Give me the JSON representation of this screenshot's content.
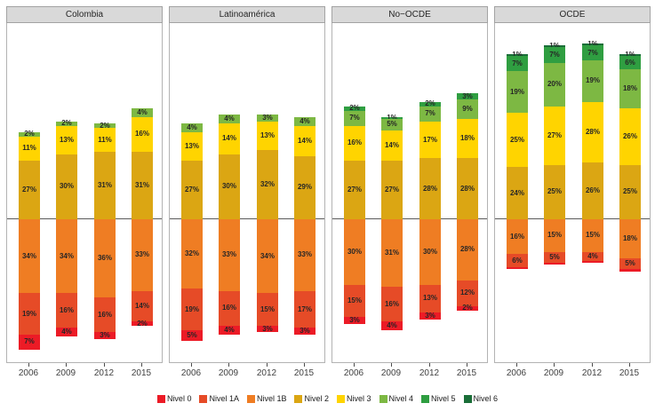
{
  "chart_data": {
    "type": "bar",
    "subtype": "diverging_stacked_percentage",
    "title": "",
    "categories": [
      "2006",
      "2009",
      "2012",
      "2015"
    ],
    "legend_position": "bottom",
    "grid": false,
    "note": "Levels Nivel 0/1A/1B stack below the zero baseline; Nivel 2-6 stack above it. Values are percentages.",
    "levels": [
      {
        "id": "nivel0",
        "label": "Nivel 0",
        "color": "#EC1B26",
        "side": "below"
      },
      {
        "id": "nivel1a",
        "label": "Nivel 1A",
        "color": "#E64B27",
        "side": "below"
      },
      {
        "id": "nivel1b",
        "label": "Nivel 1B",
        "color": "#EF7D23",
        "side": "below"
      },
      {
        "id": "nivel2",
        "label": "Nivel 2",
        "color": "#DBA613",
        "side": "above"
      },
      {
        "id": "nivel3",
        "label": "Nivel 3",
        "color": "#FFD400",
        "side": "above"
      },
      {
        "id": "nivel4",
        "label": "Nivel 4",
        "color": "#7DB843",
        "side": "above"
      },
      {
        "id": "nivel5",
        "label": "Nivel 5",
        "color": "#2F9E41",
        "side": "above"
      },
      {
        "id": "nivel6",
        "label": "Nivel 6",
        "color": "#1A6E38",
        "side": "above"
      }
    ],
    "panels": [
      {
        "title": "Colombia",
        "bars": [
          {
            "year": "2006",
            "segments": [
              [
                "nivel0",
                7,
                "7%"
              ],
              [
                "nivel1a",
                19,
                "19%"
              ],
              [
                "nivel1b",
                34,
                "34%"
              ],
              [
                "nivel2",
                27,
                "27%"
              ],
              [
                "nivel3",
                11,
                "11%"
              ],
              [
                "nivel4",
                2,
                "2%"
              ]
            ]
          },
          {
            "year": "2009",
            "segments": [
              [
                "nivel0",
                4,
                "4%"
              ],
              [
                "nivel1a",
                16,
                "16%"
              ],
              [
                "nivel1b",
                34,
                "34%"
              ],
              [
                "nivel2",
                30,
                "30%"
              ],
              [
                "nivel3",
                13,
                "13%"
              ],
              [
                "nivel4",
                2,
                "2%"
              ]
            ]
          },
          {
            "year": "2012",
            "segments": [
              [
                "nivel0",
                3,
                "3%"
              ],
              [
                "nivel1a",
                16,
                "16%"
              ],
              [
                "nivel1b",
                36,
                "36%"
              ],
              [
                "nivel2",
                31,
                "31%"
              ],
              [
                "nivel3",
                11,
                "11%"
              ],
              [
                "nivel4",
                2,
                "2%"
              ]
            ]
          },
          {
            "year": "2015",
            "segments": [
              [
                "nivel0",
                2,
                "2%"
              ],
              [
                "nivel1a",
                14,
                "14%"
              ],
              [
                "nivel1b",
                33,
                "33%"
              ],
              [
                "nivel2",
                31,
                "31%"
              ],
              [
                "nivel3",
                16,
                "16%"
              ],
              [
                "nivel4",
                4,
                "4%"
              ]
            ]
          }
        ]
      },
      {
        "title": "Latinoamérica",
        "bars": [
          {
            "year": "2006",
            "segments": [
              [
                "nivel0",
                5,
                "5%"
              ],
              [
                "nivel1a",
                19,
                "19%"
              ],
              [
                "nivel1b",
                32,
                "32%"
              ],
              [
                "nivel2",
                27,
                "27%"
              ],
              [
                "nivel3",
                13,
                "13%"
              ],
              [
                "nivel4",
                4,
                "4%"
              ]
            ]
          },
          {
            "year": "2009",
            "segments": [
              [
                "nivel0",
                4,
                "4%"
              ],
              [
                "nivel1a",
                16,
                "16%"
              ],
              [
                "nivel1b",
                33,
                "33%"
              ],
              [
                "nivel2",
                30,
                "30%"
              ],
              [
                "nivel3",
                14,
                "14%"
              ],
              [
                "nivel4",
                4,
                "4%"
              ]
            ]
          },
          {
            "year": "2012",
            "segments": [
              [
                "nivel0",
                3,
                "3%"
              ],
              [
                "nivel1a",
                15,
                "15%"
              ],
              [
                "nivel1b",
                34,
                "34%"
              ],
              [
                "nivel2",
                32,
                "32%"
              ],
              [
                "nivel3",
                13,
                "13%"
              ],
              [
                "nivel4",
                3,
                "3%"
              ]
            ]
          },
          {
            "year": "2015",
            "segments": [
              [
                "nivel0",
                3,
                "3%"
              ],
              [
                "nivel1a",
                17,
                "17%"
              ],
              [
                "nivel1b",
                33,
                "33%"
              ],
              [
                "nivel2",
                29,
                "29%"
              ],
              [
                "nivel3",
                14,
                "14%"
              ],
              [
                "nivel4",
                4,
                "4%"
              ]
            ]
          }
        ]
      },
      {
        "title": "No−OCDE",
        "bars": [
          {
            "year": "2006",
            "segments": [
              [
                "nivel0",
                3,
                "3%"
              ],
              [
                "nivel1a",
                15,
                "15%"
              ],
              [
                "nivel1b",
                30,
                "30%"
              ],
              [
                "nivel2",
                27,
                "27%"
              ],
              [
                "nivel3",
                16,
                "16%"
              ],
              [
                "nivel4",
                7,
                "7%"
              ],
              [
                "nivel5",
                2,
                "2%"
              ]
            ]
          },
          {
            "year": "2009",
            "segments": [
              [
                "nivel0",
                4,
                "4%"
              ],
              [
                "nivel1a",
                16,
                "16%"
              ],
              [
                "nivel1b",
                31,
                "31%"
              ],
              [
                "nivel2",
                27,
                "27%"
              ],
              [
                "nivel3",
                14,
                "14%"
              ],
              [
                "nivel4",
                5,
                "5%"
              ],
              [
                "nivel5",
                1,
                "1%"
              ]
            ]
          },
          {
            "year": "2012",
            "segments": [
              [
                "nivel0",
                3,
                "3%"
              ],
              [
                "nivel1a",
                13,
                "13%"
              ],
              [
                "nivel1b",
                30,
                "30%"
              ],
              [
                "nivel2",
                28,
                "28%"
              ],
              [
                "nivel3",
                17,
                "17%"
              ],
              [
                "nivel4",
                7,
                "7%"
              ],
              [
                "nivel5",
                2,
                "2%"
              ]
            ]
          },
          {
            "year": "2015",
            "segments": [
              [
                "nivel0",
                2,
                "2%"
              ],
              [
                "nivel1a",
                12,
                "12%"
              ],
              [
                "nivel1b",
                28,
                "28%"
              ],
              [
                "nivel2",
                28,
                "28%"
              ],
              [
                "nivel3",
                18,
                "18%"
              ],
              [
                "nivel4",
                9,
                "9%"
              ],
              [
                "nivel5",
                3,
                "3%"
              ]
            ]
          }
        ]
      },
      {
        "title": "OCDE",
        "bars": [
          {
            "year": "2006",
            "segments": [
              [
                "nivel0",
                1,
                ""
              ],
              [
                "nivel1a",
                6,
                "6%"
              ],
              [
                "nivel1b",
                16,
                "16%"
              ],
              [
                "nivel2",
                24,
                "24%"
              ],
              [
                "nivel3",
                25,
                "25%"
              ],
              [
                "nivel4",
                19,
                "19%"
              ],
              [
                "nivel5",
                7,
                "7%"
              ],
              [
                "nivel6",
                1,
                "1%"
              ]
            ]
          },
          {
            "year": "2009",
            "segments": [
              [
                "nivel0",
                1,
                ""
              ],
              [
                "nivel1a",
                5,
                "5%"
              ],
              [
                "nivel1b",
                15,
                "15%"
              ],
              [
                "nivel2",
                25,
                "25%"
              ],
              [
                "nivel3",
                27,
                "27%"
              ],
              [
                "nivel4",
                20,
                "20%"
              ],
              [
                "nivel5",
                7,
                "7%"
              ],
              [
                "nivel6",
                1,
                "1%"
              ]
            ]
          },
          {
            "year": "2012",
            "segments": [
              [
                "nivel0",
                1,
                ""
              ],
              [
                "nivel1a",
                4,
                "4%"
              ],
              [
                "nivel1b",
                15,
                "15%"
              ],
              [
                "nivel2",
                26,
                "26%"
              ],
              [
                "nivel3",
                28,
                "28%"
              ],
              [
                "nivel4",
                19,
                "19%"
              ],
              [
                "nivel5",
                7,
                "7%"
              ],
              [
                "nivel6",
                1,
                "1%"
              ]
            ]
          },
          {
            "year": "2015",
            "segments": [
              [
                "nivel0",
                1,
                ""
              ],
              [
                "nivel1a",
                5,
                "5%"
              ],
              [
                "nivel1b",
                18,
                "18%"
              ],
              [
                "nivel2",
                25,
                "25%"
              ],
              [
                "nivel3",
                26,
                "26%"
              ],
              [
                "nivel4",
                18,
                "18%"
              ],
              [
                "nivel5",
                6,
                "6%"
              ],
              [
                "nivel6",
                1,
                "1%"
              ]
            ]
          }
        ]
      }
    ]
  }
}
